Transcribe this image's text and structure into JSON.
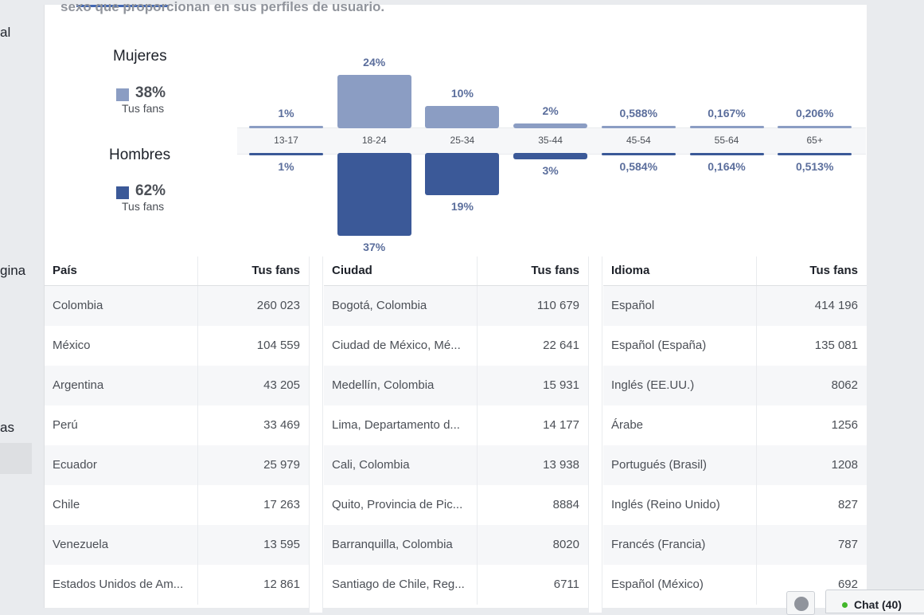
{
  "left_nav": {
    "fragments": [
      "al",
      "gina",
      "as"
    ]
  },
  "intro_text": "sexo que proporcionan en sus perfiles de usuario.",
  "gender": {
    "women": {
      "label": "Mujeres",
      "percent": "38%",
      "sub": "Tus fans",
      "color": "#8b9dc3"
    },
    "men": {
      "label": "Hombres",
      "percent": "62%",
      "sub": "Tus fans",
      "color": "#3b5998"
    }
  },
  "chart_data": {
    "type": "bar",
    "categories": [
      "13-17",
      "18-24",
      "25-34",
      "35-44",
      "45-54",
      "55-64",
      "65+"
    ],
    "series": [
      {
        "name": "Mujeres",
        "values": [
          1,
          24,
          10,
          2,
          0.588,
          0.167,
          0.206
        ],
        "labels": [
          "1%",
          "24%",
          "10%",
          "2%",
          "0,588%",
          "0,167%",
          "0,206%"
        ]
      },
      {
        "name": "Hombres",
        "values": [
          1,
          37,
          19,
          3,
          0.584,
          0.164,
          0.513
        ],
        "labels": [
          "1%",
          "37%",
          "19%",
          "3%",
          "0,584%",
          "0,164%",
          "0,513%"
        ]
      }
    ]
  },
  "tables": [
    {
      "col1": "País",
      "col2": "Tus fans",
      "rows": [
        [
          "Colombia",
          "260 023"
        ],
        [
          "México",
          "104 559"
        ],
        [
          "Argentina",
          "43 205"
        ],
        [
          "Perú",
          "33 469"
        ],
        [
          "Ecuador",
          "25 979"
        ],
        [
          "Chile",
          "17 263"
        ],
        [
          "Venezuela",
          "13 595"
        ],
        [
          "Estados Unidos de Am...",
          "12 861"
        ]
      ]
    },
    {
      "col1": "Ciudad",
      "col2": "Tus fans",
      "rows": [
        [
          "Bogotá, Colombia",
          "110 679"
        ],
        [
          "Ciudad de México, Mé...",
          "22 641"
        ],
        [
          "Medellín, Colombia",
          "15 931"
        ],
        [
          "Lima, Departamento d...",
          "14 177"
        ],
        [
          "Cali, Colombia",
          "13 938"
        ],
        [
          "Quito, Provincia de Pic...",
          "8884"
        ],
        [
          "Barranquilla, Colombia",
          "8020"
        ],
        [
          "Santiago de Chile, Reg...",
          "6711"
        ]
      ]
    },
    {
      "col1": "Idioma",
      "col2": "Tus fans",
      "rows": [
        [
          "Español",
          "414 196"
        ],
        [
          "Español (España)",
          "135 081"
        ],
        [
          "Inglés (EE.UU.)",
          "8062"
        ],
        [
          "Árabe",
          "1256"
        ],
        [
          "Portugués (Brasil)",
          "1208"
        ],
        [
          "Inglés (Reino Unido)",
          "827"
        ],
        [
          "Francés (Francia)",
          "787"
        ],
        [
          "Español (México)",
          "692"
        ]
      ]
    }
  ],
  "chat": {
    "label": "Chat (40)",
    "icon": "globe-icon"
  }
}
